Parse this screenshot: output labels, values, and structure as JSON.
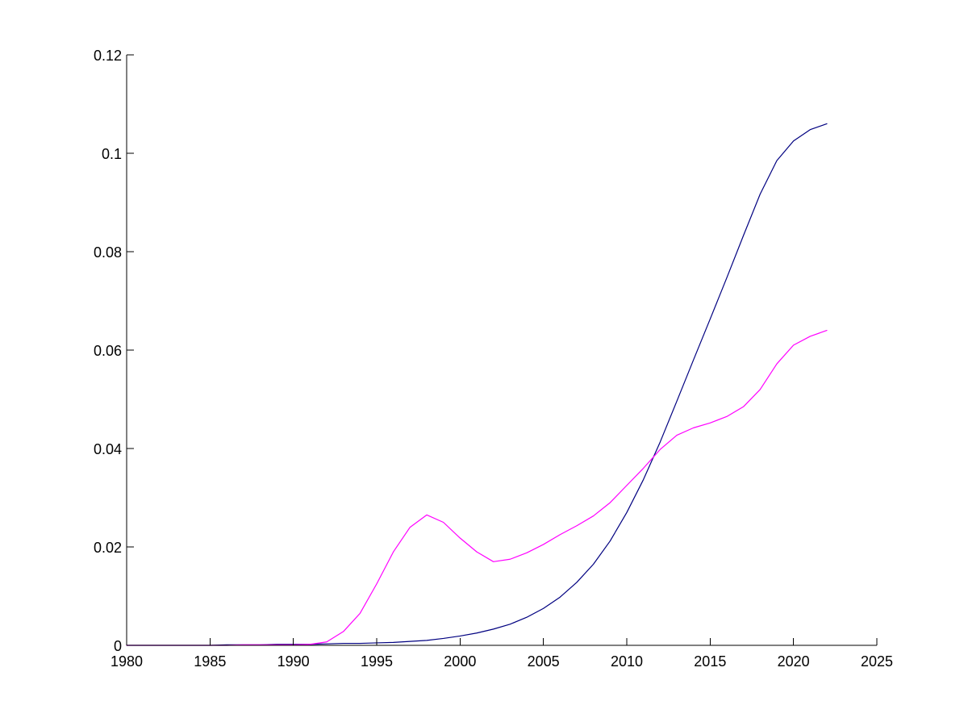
{
  "chart_data": {
    "type": "line",
    "title": "",
    "xlabel": "",
    "ylabel": "",
    "xlim": [
      1980,
      2025
    ],
    "ylim": [
      0,
      0.12
    ],
    "grid": false,
    "legend": "none",
    "x_ticks": [
      1980,
      1985,
      1990,
      1995,
      2000,
      2005,
      2010,
      2015,
      2020,
      2025
    ],
    "x_tick_labels": [
      "1980",
      "1985",
      "1990",
      "1995",
      "2000",
      "2005",
      "2010",
      "2015",
      "2020",
      "2025"
    ],
    "y_ticks": [
      0,
      0.02,
      0.04,
      0.06,
      0.08,
      0.1,
      0.12
    ],
    "y_tick_labels": [
      "0",
      "0.02",
      "0.04",
      "0.06",
      "0.08",
      "0.1",
      "0.12"
    ],
    "x": [
      1980,
      1981,
      1982,
      1983,
      1984,
      1985,
      1986,
      1987,
      1988,
      1989,
      1990,
      1991,
      1992,
      1993,
      1994,
      1995,
      1996,
      1997,
      1998,
      1999,
      2000,
      2001,
      2002,
      2003,
      2004,
      2005,
      2006,
      2007,
      2008,
      2009,
      2010,
      2011,
      2012,
      2013,
      2014,
      2015,
      2016,
      2017,
      2018,
      2019,
      2020,
      2021,
      2022
    ],
    "series": [
      {
        "color": "#000080",
        "values": [
          0,
          0,
          0,
          0,
          0,
          0,
          0.0001,
          0.0001,
          0.0001,
          0.0002,
          0.0002,
          0.0002,
          0.0003,
          0.0004,
          0.0004,
          0.0005,
          0.0006,
          0.0008,
          0.001,
          0.0014,
          0.0019,
          0.0025,
          0.0033,
          0.0043,
          0.0057,
          0.0075,
          0.0098,
          0.0128,
          0.0165,
          0.0212,
          0.027,
          0.0337,
          0.0413,
          0.0496,
          0.058,
          0.0663,
          0.0747,
          0.0833,
          0.0917,
          0.0985,
          0.1025,
          0.1048,
          0.106
        ]
      },
      {
        "color": "#ff00ff",
        "values": [
          0,
          0,
          0,
          0,
          0,
          0,
          0,
          0.0001,
          0.0001,
          0.0001,
          0.0001,
          0.0002,
          0.0007,
          0.0028,
          0.0065,
          0.0125,
          0.019,
          0.024,
          0.0265,
          0.025,
          0.0218,
          0.019,
          0.017,
          0.0175,
          0.0188,
          0.0205,
          0.0225,
          0.0243,
          0.0263,
          0.029,
          0.0325,
          0.036,
          0.0398,
          0.0427,
          0.0442,
          0.0452,
          0.0465,
          0.0485,
          0.052,
          0.0572,
          0.061,
          0.0628,
          0.064
        ]
      }
    ]
  }
}
